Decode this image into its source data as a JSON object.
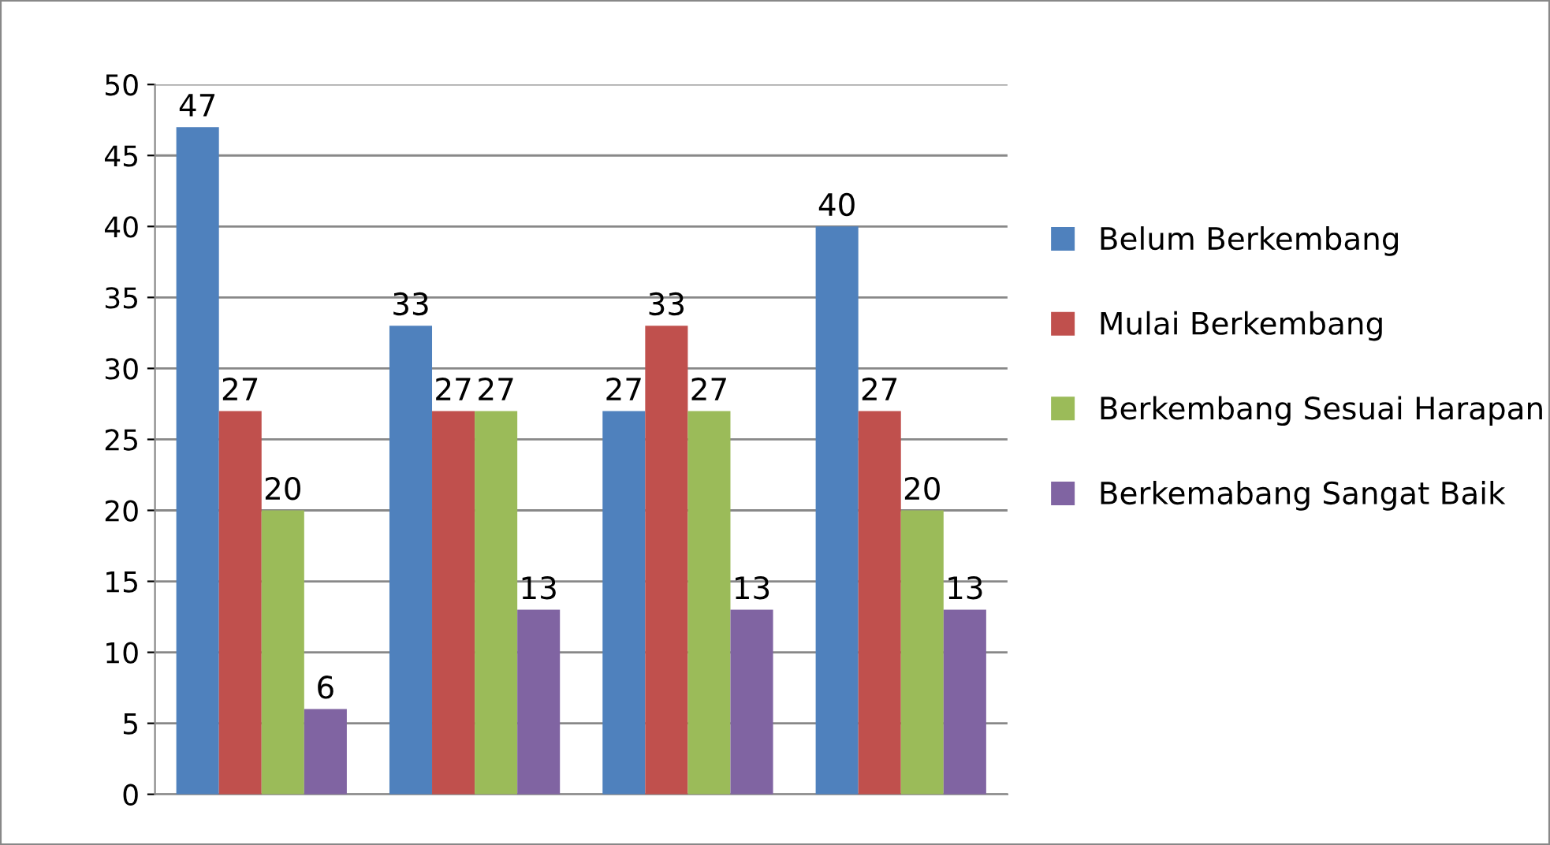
{
  "chart_data": {
    "type": "bar",
    "categories": [
      null,
      null,
      null,
      null
    ],
    "series": [
      {
        "name": "Belum Berkembang",
        "color": "#4f81bd",
        "values": [
          47,
          33,
          27,
          40
        ]
      },
      {
        "name": "Mulai Berkembang",
        "color": "#c0504d",
        "values": [
          27,
          27,
          33,
          27
        ]
      },
      {
        "name": "Berkembang Sesuai Harapan",
        "color": "#9bbb59",
        "values": [
          20,
          27,
          27,
          20
        ]
      },
      {
        "name": "Berkemabang Sangat Baik",
        "color": "#8064a2",
        "values": [
          6,
          13,
          13,
          13
        ]
      }
    ],
    "ylim": [
      0,
      50
    ],
    "yticks": [
      0,
      5,
      10,
      15,
      20,
      25,
      30,
      35,
      40,
      45,
      50
    ],
    "grid": "y",
    "legend": "right",
    "data_labels": true
  }
}
